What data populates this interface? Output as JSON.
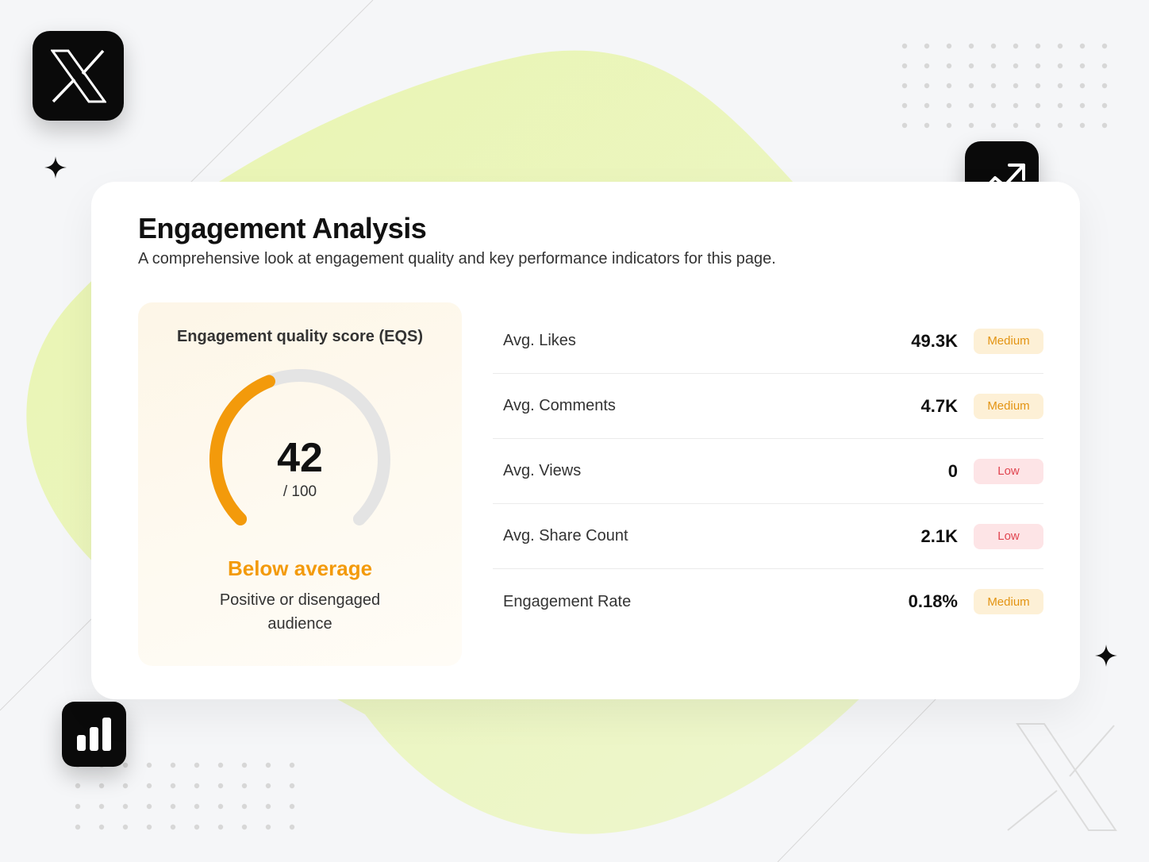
{
  "card": {
    "title": "Engagement Analysis",
    "subtitle": "A comprehensive look at engagement quality and key performance indicators for this page."
  },
  "score": {
    "label": "Engagement quality score (EQS)",
    "value": "42",
    "max": "/ 100",
    "fraction": 0.42,
    "status": "Below average",
    "description": "Positive or disengaged audience"
  },
  "metrics": [
    {
      "label": "Avg. Likes",
      "value": "49.3K",
      "level": "Medium",
      "tone": "medium"
    },
    {
      "label": "Avg. Comments",
      "value": "4.7K",
      "level": "Medium",
      "tone": "medium"
    },
    {
      "label": "Avg. Views",
      "value": "0",
      "level": "Low",
      "tone": "low"
    },
    {
      "label": "Avg. Share Count",
      "value": "2.1K",
      "level": "Low",
      "tone": "low"
    },
    {
      "label": "Engagement Rate",
      "value": "0.18%",
      "level": "Medium",
      "tone": "medium"
    }
  ],
  "icons": {
    "top_left": "x-logo-icon",
    "top_right": "trending-up-icon",
    "bottom_left": "bar-chart-icon",
    "decorative": [
      "sparkle-icon",
      "x-logo-outline-icon"
    ]
  },
  "colors": {
    "accent": "#f39a0b",
    "gauge_track": "#e4e4e4",
    "badge_medium_text": "#e39413",
    "badge_low_text": "#e0444f",
    "blob": "#e6f3b4"
  }
}
